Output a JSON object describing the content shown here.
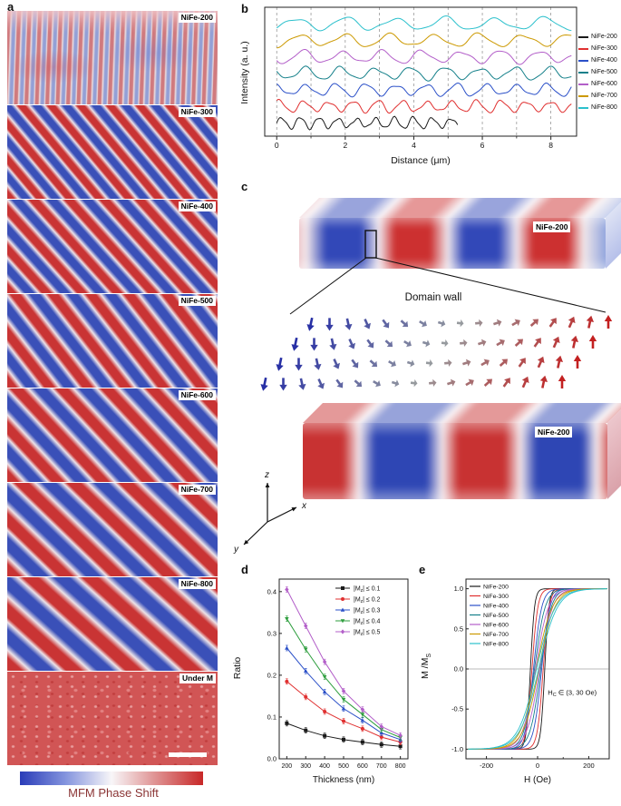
{
  "panels": {
    "a": {
      "letter": "a",
      "images": [
        {
          "label": "NiFe-200"
        },
        {
          "label": "NiFe-300"
        },
        {
          "label": "NiFe-400"
        },
        {
          "label": "NiFe-500"
        },
        {
          "label": "NiFe-600"
        },
        {
          "label": "NiFe-700"
        },
        {
          "label": "NiFe-800"
        },
        {
          "label": "Under M"
        }
      ],
      "colorbar_label": "MFM Phase Shift",
      "colorbar_colors": [
        "#2a3cb8",
        "#ffffff",
        "#c82828"
      ]
    },
    "b": {
      "letter": "b"
    },
    "c": {
      "letter": "c",
      "slab_labels": [
        "NiFe-200",
        "NiFe-200"
      ],
      "domain_wall_label": "Domain wall",
      "axis_labels": {
        "z": "z",
        "x": "x",
        "y": "y"
      },
      "arrow_colors": {
        "down": "#2830a5",
        "mid": "#969a9e",
        "up": "#c32020"
      },
      "domain_colors": {
        "red": "#c83232",
        "blue": "#2e46b4"
      },
      "arrow_field": {
        "rows": 4,
        "cols": 17
      }
    },
    "d": {
      "letter": "d"
    },
    "e": {
      "letter": "e"
    }
  },
  "chart_data": [
    {
      "id": "b",
      "type": "line",
      "title": "",
      "xlabel": "Distance (μm)",
      "ylabel": "Intensity (a. u.)",
      "xlim": [
        -0.35,
        8.75
      ],
      "xticks": [
        0,
        2,
        4,
        6,
        8
      ],
      "xgrid_dashed": [
        0,
        1,
        2,
        3,
        4,
        5,
        6,
        7,
        8
      ],
      "legend_position": "right",
      "series": [
        {
          "name": "NiFe-200",
          "color": "#1a1a1a",
          "offset": 0,
          "period_um": 0.55,
          "amplitude": 0.3,
          "x_end": 5.3
        },
        {
          "name": "NiFe-300",
          "color": "#e03030",
          "offset": 1,
          "period_um": 0.72,
          "amplitude": 0.32,
          "x_end": 8.6
        },
        {
          "name": "NiFe-400",
          "color": "#2b50c8",
          "offset": 2,
          "period_um": 0.88,
          "amplitude": 0.33,
          "x_end": 8.6
        },
        {
          "name": "NiFe-500",
          "color": "#15808a",
          "offset": 3,
          "period_um": 1.02,
          "amplitude": 0.34,
          "x_end": 8.6
        },
        {
          "name": "NiFe-600",
          "color": "#b35fc9",
          "offset": 4,
          "period_um": 1.15,
          "amplitude": 0.35,
          "x_end": 8.6
        },
        {
          "name": "NiFe-700",
          "color": "#cc9900",
          "offset": 5,
          "period_um": 1.3,
          "amplitude": 0.35,
          "x_end": 8.6
        },
        {
          "name": "NiFe-800",
          "color": "#2bc0cc",
          "offset": 6,
          "period_um": 1.45,
          "amplitude": 0.35,
          "x_end": 8.6
        }
      ]
    },
    {
      "id": "d",
      "type": "line-scatter",
      "xlabel": "Thickness (nm)",
      "ylabel": "Ratio",
      "xlim": [
        160,
        840
      ],
      "ylim": [
        0,
        0.43
      ],
      "xticks": [
        200,
        300,
        400,
        500,
        600,
        700,
        800
      ],
      "yticks": [
        0,
        0.1,
        0.2,
        0.3,
        0.4
      ],
      "x": [
        200,
        300,
        400,
        500,
        600,
        700,
        800
      ],
      "series": [
        {
          "label_parts": [
            "|M",
            "z",
            "| ≤ 0.1"
          ],
          "color": "#1a1a1a",
          "marker": "square",
          "values": [
            0.085,
            0.068,
            0.055,
            0.046,
            0.04,
            0.034,
            0.03
          ]
        },
        {
          "label_parts": [
            "|M",
            "z",
            "| ≤ 0.2"
          ],
          "color": "#e03030",
          "marker": "circle",
          "values": [
            0.185,
            0.148,
            0.113,
            0.09,
            0.072,
            0.052,
            0.04
          ]
        },
        {
          "label_parts": [
            "|M",
            "z",
            "| ≤ 0.3"
          ],
          "color": "#2b50c8",
          "marker": "triangle-up",
          "values": [
            0.265,
            0.21,
            0.16,
            0.12,
            0.092,
            0.062,
            0.046
          ]
        },
        {
          "label_parts": [
            "|M",
            "z",
            "| ≤ 0.4"
          ],
          "color": "#2e9e3e",
          "marker": "triangle-down",
          "values": [
            0.335,
            0.262,
            0.196,
            0.142,
            0.106,
            0.07,
            0.051
          ]
        },
        {
          "label_parts": [
            "|M",
            "z",
            "| ≤ 0.5"
          ],
          "color": "#b35fc9",
          "marker": "diamond",
          "values": [
            0.405,
            0.318,
            0.232,
            0.162,
            0.118,
            0.077,
            0.056
          ]
        }
      ]
    },
    {
      "id": "e",
      "type": "line",
      "xlabel": "H (Oe)",
      "ylabel_parts": [
        "M /M",
        "S"
      ],
      "xlim": [
        -280,
        280
      ],
      "ylim": [
        -1.12,
        1.12
      ],
      "xticks": [
        -200,
        0,
        200
      ],
      "yticks": [
        1.0,
        0.5,
        0.0,
        -0.5,
        -1.0
      ],
      "annotation_parts": [
        "H",
        "C",
        " ∈ (3, 30 Oe)"
      ],
      "series": [
        {
          "name": "NiFe-200",
          "color": "#1a1a1a",
          "hc": 28,
          "sat": 35
        },
        {
          "name": "NiFe-300",
          "color": "#e03030",
          "hc": 22,
          "sat": 50
        },
        {
          "name": "NiFe-400",
          "color": "#2b50c8",
          "hc": 16,
          "sat": 70
        },
        {
          "name": "NiFe-500",
          "color": "#15808a",
          "hc": 12,
          "sat": 90
        },
        {
          "name": "NiFe-600",
          "color": "#b35fc9",
          "hc": 8,
          "sat": 110
        },
        {
          "name": "NiFe-700",
          "color": "#cc9900",
          "hc": 5,
          "sat": 135
        },
        {
          "name": "NiFe-800",
          "color": "#2bc0cc",
          "hc": 4,
          "sat": 160
        }
      ]
    }
  ]
}
